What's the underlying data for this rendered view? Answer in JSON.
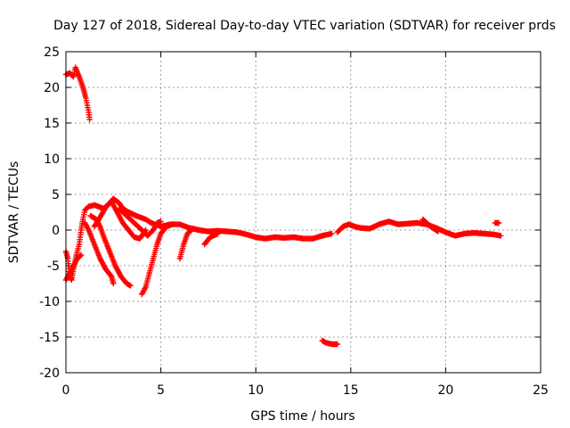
{
  "chart_data": {
    "type": "scatter",
    "title": "Day 127 of 2018, Sidereal Day-to-day VTEC variation (SDTVAR) for receiver prds",
    "xlabel": "GPS time / hours",
    "ylabel": "SDTVAR / TECUs",
    "xlim": [
      0,
      25
    ],
    "ylim": [
      -20,
      25
    ],
    "xticks": [
      0,
      5,
      10,
      15,
      20,
      25
    ],
    "yticks": [
      -20,
      -15,
      -10,
      -5,
      0,
      5,
      10,
      15,
      20,
      25
    ],
    "grid": true,
    "marker": "plus",
    "color": "#ff0000",
    "tracks": [
      [
        [
          0.0,
          21.8
        ],
        [
          0.2,
          22.0
        ],
        [
          0.4,
          21.5
        ],
        [
          0.5,
          22.8
        ],
        [
          0.7,
          21.5
        ],
        [
          0.9,
          20.0
        ],
        [
          1.05,
          18.5
        ],
        [
          1.2,
          16.5
        ],
        [
          1.25,
          15.5
        ]
      ],
      [
        [
          0.0,
          -3.0
        ],
        [
          0.1,
          -4.0
        ],
        [
          0.2,
          -6.5
        ],
        [
          0.3,
          -7.0
        ],
        [
          0.4,
          -5.5
        ],
        [
          0.55,
          -3.5
        ],
        [
          0.7,
          -2.0
        ],
        [
          0.8,
          0.0
        ],
        [
          0.9,
          1.5
        ],
        [
          1.0,
          2.8
        ],
        [
          1.2,
          3.3
        ],
        [
          1.5,
          3.5
        ],
        [
          1.8,
          3.2
        ],
        [
          2.0,
          3.0
        ],
        [
          2.3,
          3.8
        ],
        [
          2.5,
          4.4
        ],
        [
          2.8,
          3.8
        ],
        [
          3.0,
          3.0
        ],
        [
          3.3,
          2.5
        ],
        [
          3.7,
          2.0
        ],
        [
          4.2,
          1.5
        ],
        [
          4.5,
          1.0
        ],
        [
          5.0,
          0.5
        ],
        [
          5.5,
          0.8
        ],
        [
          6.0,
          0.8
        ],
        [
          6.5,
          0.3
        ],
        [
          7.0,
          0.0
        ],
        [
          7.5,
          -0.2
        ],
        [
          8.0,
          -0.1
        ],
        [
          8.5,
          -0.2
        ],
        [
          9.0,
          -0.3
        ],
        [
          9.5,
          -0.6
        ],
        [
          10.0,
          -1.0
        ],
        [
          10.5,
          -1.2
        ],
        [
          11.0,
          -1.0
        ],
        [
          11.5,
          -1.1
        ],
        [
          12.0,
          -1.0
        ],
        [
          12.5,
          -1.2
        ],
        [
          13.0,
          -1.2
        ],
        [
          13.5,
          -0.8
        ],
        [
          14.0,
          -0.5
        ]
      ],
      [
        [
          0.0,
          -7.0
        ],
        [
          0.2,
          -6.0
        ],
        [
          0.4,
          -5.0
        ],
        [
          0.6,
          -4.0
        ],
        [
          0.8,
          -3.5
        ]
      ],
      [
        [
          1.0,
          1.0
        ],
        [
          1.2,
          0.0
        ],
        [
          1.5,
          -2.0
        ],
        [
          1.8,
          -4.0
        ],
        [
          2.1,
          -5.5
        ],
        [
          2.4,
          -6.5
        ],
        [
          2.5,
          -7.5
        ]
      ],
      [
        [
          1.3,
          2.0
        ],
        [
          1.6,
          1.5
        ],
        [
          1.8,
          0.5
        ],
        [
          2.0,
          -1.0
        ],
        [
          2.3,
          -3.0
        ],
        [
          2.6,
          -5.0
        ],
        [
          2.9,
          -6.5
        ],
        [
          3.2,
          -7.5
        ],
        [
          3.4,
          -7.8
        ]
      ],
      [
        [
          1.5,
          0.5
        ],
        [
          1.8,
          1.8
        ],
        [
          2.1,
          3.2
        ],
        [
          2.4,
          4.0
        ],
        [
          2.6,
          3.0
        ],
        [
          2.8,
          2.0
        ],
        [
          3.0,
          1.0
        ],
        [
          3.3,
          0.0
        ],
        [
          3.6,
          -1.0
        ],
        [
          3.9,
          -1.2
        ],
        [
          4.2,
          0.0
        ]
      ],
      [
        [
          2.8,
          3.0
        ],
        [
          3.2,
          2.0
        ],
        [
          3.6,
          1.0
        ],
        [
          4.0,
          0.0
        ],
        [
          4.3,
          -0.8
        ],
        [
          4.6,
          0.0
        ],
        [
          4.8,
          1.0
        ],
        [
          5.0,
          1.2
        ]
      ],
      [
        [
          4.0,
          -9.0
        ],
        [
          4.2,
          -8.0
        ],
        [
          4.4,
          -6.0
        ],
        [
          4.6,
          -4.0
        ],
        [
          4.8,
          -2.0
        ],
        [
          5.0,
          -0.5
        ],
        [
          5.3,
          0.5
        ],
        [
          5.6,
          0.8
        ]
      ],
      [
        [
          6.0,
          -4.0
        ],
        [
          6.2,
          -2.0
        ],
        [
          6.4,
          -0.5
        ],
        [
          6.7,
          0.2
        ],
        [
          7.0,
          0.0
        ]
      ],
      [
        [
          7.3,
          -2.0
        ],
        [
          7.6,
          -1.0
        ],
        [
          8.0,
          -0.5
        ]
      ],
      [
        [
          13.5,
          -15.5
        ],
        [
          13.7,
          -15.8
        ],
        [
          14.0,
          -16.0
        ],
        [
          14.3,
          -16.0
        ]
      ],
      [
        [
          14.3,
          -0.3
        ],
        [
          14.6,
          0.5
        ],
        [
          14.9,
          0.8
        ],
        [
          15.2,
          0.5
        ],
        [
          15.5,
          0.3
        ],
        [
          16.0,
          0.2
        ],
        [
          16.5,
          0.8
        ],
        [
          17.0,
          1.2
        ],
        [
          17.5,
          0.8
        ],
        [
          18.0,
          0.9
        ],
        [
          18.5,
          1.0
        ],
        [
          19.0,
          0.8
        ],
        [
          19.5,
          0.3
        ],
        [
          20.0,
          -0.3
        ],
        [
          20.5,
          -0.8
        ],
        [
          21.0,
          -0.5
        ],
        [
          21.5,
          -0.4
        ],
        [
          22.0,
          -0.5
        ],
        [
          22.5,
          -0.6
        ],
        [
          22.9,
          -0.8
        ]
      ],
      [
        [
          18.8,
          1.5
        ],
        [
          19.2,
          0.5
        ],
        [
          19.6,
          -0.2
        ]
      ],
      [
        [
          22.6,
          1.0
        ],
        [
          22.8,
          1.0
        ]
      ]
    ]
  }
}
